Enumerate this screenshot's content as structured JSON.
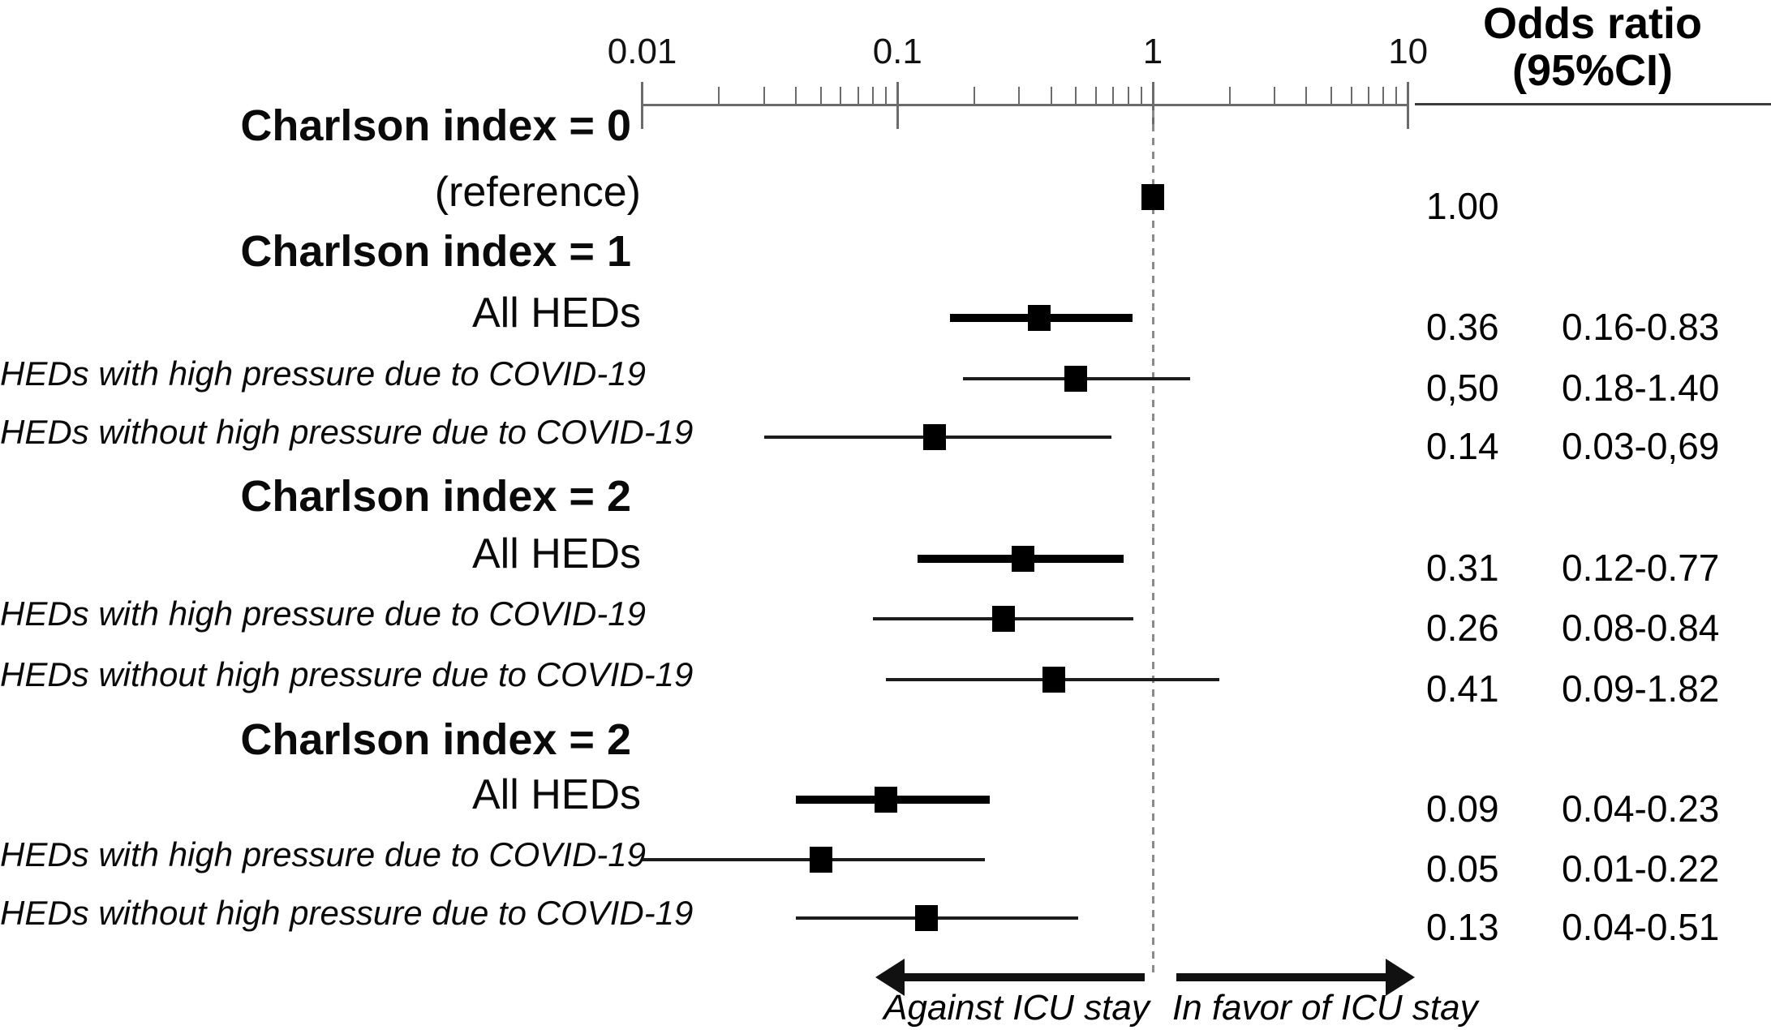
{
  "chart_data": {
    "type": "forest",
    "title": "Odds ratio (95%CI)",
    "title_line1": "Odds ratio",
    "title_line2": "(95%CI)",
    "x_axis": {
      "scale": "log",
      "min": 0.01,
      "max": 10,
      "major_ticks": [
        0.01,
        0.1,
        1,
        10
      ],
      "major_tick_labels": [
        "0.01",
        "0.1",
        "1",
        "10"
      ],
      "minor_ticks": "2-9 per decade",
      "reference_line_value": 1
    },
    "groups": [
      {
        "heading": "Charlson index = 0",
        "rows": [
          {
            "label": "(reference)",
            "italic": false,
            "or": 1.0,
            "or_text": "1.00",
            "ci": null,
            "ci_text": "",
            "thick": false,
            "marker_only": true
          }
        ]
      },
      {
        "heading": "Charlson index = 1",
        "rows": [
          {
            "label": "All HEDs",
            "italic": false,
            "or": 0.36,
            "or_text": "0.36",
            "ci": [
              0.16,
              0.83
            ],
            "ci_text": "0.16-0.83",
            "thick": true
          },
          {
            "label": "HEDs with high pressure due to COVID-19",
            "italic": true,
            "or": 0.5,
            "or_text": "0,50",
            "ci": [
              0.18,
              1.4
            ],
            "ci_text": "0.18-1.40",
            "thick": false
          },
          {
            "label": "HEDs without high pressure due to COVID-19",
            "italic": true,
            "or": 0.14,
            "or_text": "0.14",
            "ci": [
              0.03,
              0.69
            ],
            "ci_text": "0.03-0,69",
            "thick": false
          }
        ]
      },
      {
        "heading": "Charlson index = 2",
        "rows": [
          {
            "label": "All HEDs",
            "italic": false,
            "or": 0.31,
            "or_text": "0.31",
            "ci": [
              0.12,
              0.77
            ],
            "ci_text": "0.12-0.77",
            "thick": true
          },
          {
            "label": "HEDs with high pressure due to COVID-19",
            "italic": true,
            "or": 0.26,
            "or_text": "0.26",
            "ci": [
              0.08,
              0.84
            ],
            "ci_text": "0.08-0.84",
            "thick": false
          },
          {
            "label": "HEDs without high pressure due to COVID-19",
            "italic": true,
            "or": 0.41,
            "or_text": "0.41",
            "ci": [
              0.09,
              1.82
            ],
            "ci_text": "0.09-1.82",
            "thick": false
          }
        ]
      },
      {
        "heading": "Charlson index = 2",
        "rows": [
          {
            "label": "All HEDs",
            "italic": false,
            "or": 0.09,
            "or_text": "0.09",
            "ci": [
              0.04,
              0.23
            ],
            "ci_text": "0.04-0.23",
            "thick": true
          },
          {
            "label": "HEDs with high pressure due to COVID-19",
            "italic": true,
            "or": 0.05,
            "or_text": "0.05",
            "ci": [
              0.01,
              0.22
            ],
            "ci_text": "0.01-0.22",
            "thick": false
          },
          {
            "label": "HEDs without high pressure due to COVID-19",
            "italic": true,
            "or": 0.13,
            "or_text": "0.13",
            "ci": [
              0.04,
              0.51
            ],
            "ci_text": "0.04-0.51",
            "thick": false
          }
        ]
      }
    ],
    "footer": {
      "against_label": "Against ICU stay",
      "favor_label": "In favor of ICU stay"
    },
    "colors": {
      "marker": "#000000",
      "axis": "#6b6b6b",
      "reference_dash": "#8a8a8a",
      "text": "#0a0a0a"
    }
  }
}
